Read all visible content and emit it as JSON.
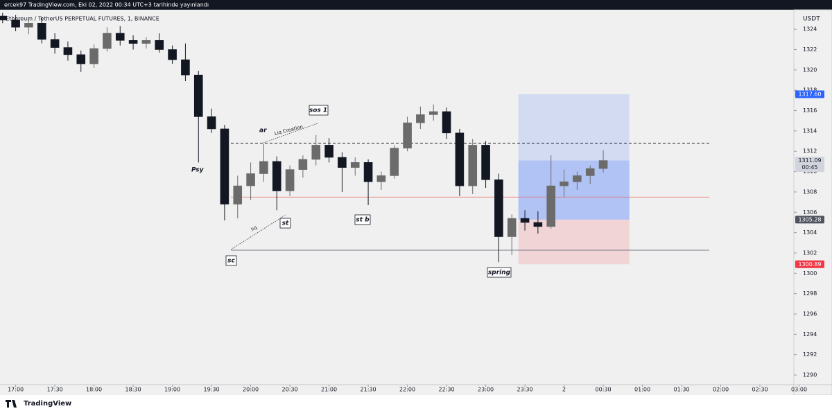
{
  "header": "ercek97 TradingView.com, Eki 02, 2022 00:34 UTC+3 tarihinde yayınlandı",
  "footer": "TradingView",
  "chart_data": {
    "type": "candlestick",
    "title": "Ethereum / TetherUS PERPETUAL FUTURES, 1, BINANCE",
    "currency": "USDT",
    "x": [
      "16:50",
      "17:00",
      "17:10",
      "17:20",
      "17:30",
      "17:40",
      "17:50",
      "18:00",
      "18:10",
      "18:20",
      "18:30",
      "18:40",
      "18:50",
      "19:00",
      "19:10",
      "19:20",
      "19:30",
      "19:40",
      "19:50",
      "20:00",
      "20:10",
      "20:20",
      "20:30",
      "20:40",
      "20:50",
      "21:00",
      "21:10",
      "21:20",
      "21:30",
      "21:40",
      "21:50",
      "22:00",
      "22:10",
      "22:20",
      "22:30",
      "22:40",
      "22:50",
      "23:00",
      "23:10",
      "23:20",
      "23:30",
      "23:40",
      "23:50",
      "00:00",
      "00:10",
      "00:20",
      "00:30"
    ],
    "open": [
      1325.3,
      1324.9,
      1324.2,
      1324.6,
      1323.0,
      1322.2,
      1321.5,
      1320.6,
      1322.1,
      1323.6,
      1322.9,
      1322.6,
      1322.9,
      1322.0,
      1321.0,
      1319.5,
      1315.4,
      1314.2,
      1306.8,
      1308.6,
      1309.8,
      1311.0,
      1308.1,
      1310.2,
      1311.2,
      1312.6,
      1311.4,
      1310.4,
      1310.9,
      1309.0,
      1309.6,
      1312.3,
      1314.8,
      1315.6,
      1315.9,
      1313.8,
      1308.6,
      1312.6,
      1309.2,
      1303.6,
      1305.4,
      1305.0,
      1304.6,
      1308.6,
      1309.0,
      1309.6,
      1310.3
    ],
    "high": [
      1325.6,
      1325.4,
      1325.0,
      1325.2,
      1323.6,
      1322.8,
      1321.9,
      1322.5,
      1324.2,
      1324.3,
      1323.4,
      1323.2,
      1323.6,
      1322.4,
      1322.6,
      1319.9,
      1316.2,
      1314.6,
      1309.6,
      1310.9,
      1312.7,
      1311.5,
      1310.6,
      1311.6,
      1313.6,
      1313.3,
      1311.9,
      1311.4,
      1311.2,
      1310.0,
      1312.6,
      1315.4,
      1316.4,
      1316.6,
      1316.3,
      1314.2,
      1313.2,
      1313.0,
      1309.8,
      1305.8,
      1306.2,
      1306.1,
      1311.6,
      1310.2,
      1310.0,
      1310.6,
      1312.1
    ],
    "low": [
      1324.6,
      1323.8,
      1323.5,
      1322.6,
      1321.6,
      1320.9,
      1319.8,
      1320.2,
      1321.8,
      1322.4,
      1322.0,
      1322.1,
      1321.7,
      1320.6,
      1318.9,
      1310.9,
      1313.8,
      1305.2,
      1305.4,
      1307.2,
      1309.0,
      1306.2,
      1307.6,
      1309.4,
      1310.6,
      1310.9,
      1308.0,
      1309.6,
      1306.7,
      1308.2,
      1309.3,
      1312.0,
      1314.2,
      1315.0,
      1313.2,
      1307.6,
      1307.8,
      1308.4,
      1301.1,
      1301.8,
      1304.2,
      1303.9,
      1304.4,
      1307.5,
      1308.2,
      1308.8,
      1309.9
    ],
    "close": [
      1324.9,
      1324.2,
      1324.6,
      1323.0,
      1322.2,
      1321.5,
      1320.6,
      1322.1,
      1323.6,
      1322.9,
      1322.6,
      1322.9,
      1322.0,
      1321.0,
      1319.5,
      1315.4,
      1314.2,
      1306.8,
      1308.6,
      1309.8,
      1311.0,
      1308.1,
      1310.2,
      1311.2,
      1312.6,
      1311.4,
      1310.4,
      1310.9,
      1309.0,
      1309.6,
      1312.3,
      1314.8,
      1315.6,
      1315.9,
      1313.8,
      1308.6,
      1312.6,
      1309.2,
      1303.6,
      1305.4,
      1305.0,
      1304.6,
      1308.6,
      1309.0,
      1309.6,
      1310.3,
      1311.09
    ],
    "up_color": "#6b6b6b",
    "down_color": "#131722",
    "xlim": [
      "16:48",
      "02:56"
    ],
    "xticks": [
      "17:00",
      "17:30",
      "18:00",
      "18:30",
      "19:00",
      "19:30",
      "20:00",
      "20:30",
      "21:00",
      "21:30",
      "22:00",
      "22:30",
      "23:00",
      "23:30",
      {
        "value": "00:00",
        "label": "2"
      },
      "00:30",
      "01:00",
      "01:30",
      "02:00",
      "02:30",
      "03:00"
    ],
    "ylim": [
      1289.05,
      1325.85
    ],
    "yticks": [
      1290,
      1292,
      1294,
      1296,
      1298,
      1300,
      1302,
      1304,
      1306,
      1308,
      1310,
      1312,
      1314,
      1316,
      1318,
      1320,
      1322,
      1324
    ],
    "grid": false,
    "levels": [
      {
        "value": 1312.8,
        "color": "#131722",
        "style": "dashed"
      },
      {
        "value": 1307.5,
        "color": "#e57373",
        "style": "solid"
      },
      {
        "value": 1302.27,
        "color": "#787b86",
        "style": "solid"
      }
    ],
    "position": {
      "start": "23:25",
      "end": "00:50",
      "entry": 1305.28,
      "target": 1317.6,
      "stop": 1300.89
    },
    "price_labels": [
      {
        "value": 1317.6,
        "label": "1317.60",
        "color": "#2962ff"
      },
      {
        "value": 1311.09,
        "label": "1311.09",
        "countdown": "00:45",
        "color": "#d1d4dc"
      },
      {
        "value": 1305.28,
        "label": "1305.28",
        "color": "#50535e"
      },
      {
        "value": 1300.89,
        "label": "1300.89",
        "color": "#f23645"
      }
    ],
    "annotations": [
      "ar",
      "Liq Creation",
      "sos 1",
      "Psy",
      "st",
      "liq",
      "st b",
      "sc",
      "spring"
    ]
  }
}
